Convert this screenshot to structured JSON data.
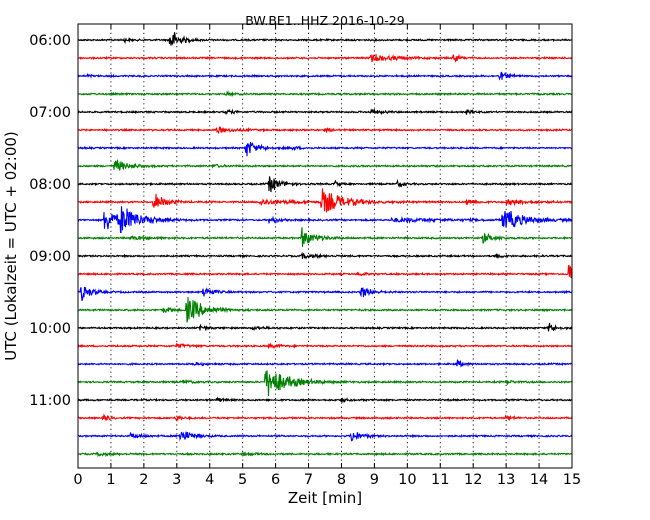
{
  "chart_data": {
    "type": "line",
    "title": "BW.BE1..HHZ 2016-10-29",
    "xlabel": "Zeit  [min]",
    "ylabel": "UTC (Lokalzeit = UTC + 02:00)",
    "xlim": [
      0,
      15
    ],
    "x_ticks": [
      "0",
      "1",
      "2",
      "3",
      "4",
      "5",
      "6",
      "7",
      "8",
      "9",
      "10",
      "11",
      "12",
      "13",
      "14",
      "15"
    ],
    "y_ticks": [
      "06:00",
      "07:00",
      "08:00",
      "09:00",
      "10:00",
      "11:00"
    ],
    "grid_vertical": true,
    "colors": [
      "#000000",
      "#ff0000",
      "#0000ff",
      "#008000"
    ],
    "traces": [
      {
        "start": "06:00",
        "events": [
          {
            "t": 2.8,
            "amp": 0.9,
            "dur": 0.25
          },
          {
            "t": 1.4,
            "amp": 0.15,
            "dur": 0.15
          }
        ]
      },
      {
        "start": "06:15",
        "events": [
          {
            "t": 8.9,
            "amp": 0.3,
            "dur": 0.6
          },
          {
            "t": 11.4,
            "amp": 0.35,
            "dur": 0.15
          }
        ]
      },
      {
        "start": "06:30",
        "events": [
          {
            "t": 12.8,
            "amp": 0.35,
            "dur": 0.2
          },
          {
            "t": 0.3,
            "amp": 0.12,
            "dur": 0.1
          }
        ]
      },
      {
        "start": "06:45",
        "events": [
          {
            "t": 4.5,
            "amp": 0.12,
            "dur": 0.2
          }
        ]
      },
      {
        "start": "07:00",
        "events": [
          {
            "t": 4.5,
            "amp": 0.18,
            "dur": 0.2
          },
          {
            "t": 8.9,
            "amp": 0.2,
            "dur": 0.25
          },
          {
            "t": 11.8,
            "amp": 0.15,
            "dur": 0.2
          }
        ]
      },
      {
        "start": "07:15",
        "events": [
          {
            "t": 4.2,
            "amp": 0.2,
            "dur": 0.5
          },
          {
            "t": 7.5,
            "amp": 0.12,
            "dur": 0.2
          }
        ]
      },
      {
        "start": "07:30",
        "events": [
          {
            "t": 5.1,
            "amp": 0.7,
            "dur": 0.3
          },
          {
            "t": 6.5,
            "amp": 0.12,
            "dur": 0.2
          }
        ]
      },
      {
        "start": "07:45",
        "events": [
          {
            "t": 1.1,
            "amp": 0.55,
            "dur": 0.35
          },
          {
            "t": 4.1,
            "amp": 0.18,
            "dur": 0.15
          }
        ]
      },
      {
        "start": "08:00",
        "events": [
          {
            "t": 5.8,
            "amp": 0.7,
            "dur": 0.3
          },
          {
            "t": 7.8,
            "amp": 0.25,
            "dur": 0.1
          },
          {
            "t": 9.7,
            "amp": 0.3,
            "dur": 0.15
          }
        ]
      },
      {
        "start": "08:15",
        "events": [
          {
            "t": 2.3,
            "amp": 0.7,
            "dur": 0.3
          },
          {
            "t": 7.4,
            "amp": 0.95,
            "dur": 0.6
          },
          {
            "t": 5.5,
            "amp": 0.2,
            "dur": 1.0
          },
          {
            "t": 11.8,
            "amp": 0.3,
            "dur": 0.2
          },
          {
            "t": 13.0,
            "amp": 0.2,
            "dur": 0.6
          }
        ]
      },
      {
        "start": "08:30",
        "events": [
          {
            "t": 0.8,
            "amp": 0.9,
            "dur": 0.5
          },
          {
            "t": 1.3,
            "amp": 1.0,
            "dur": 0.5
          },
          {
            "t": 5.8,
            "amp": 0.2,
            "dur": 0.3
          },
          {
            "t": 12.9,
            "amp": 0.95,
            "dur": 0.55
          },
          {
            "t": 9.5,
            "amp": 0.15,
            "dur": 1.5
          }
        ]
      },
      {
        "start": "08:45",
        "events": [
          {
            "t": 6.8,
            "amp": 0.75,
            "dur": 0.35
          },
          {
            "t": 12.3,
            "amp": 0.4,
            "dur": 0.3
          },
          {
            "t": 1.6,
            "amp": 0.12,
            "dur": 0.5
          }
        ]
      },
      {
        "start": "09:00",
        "events": [
          {
            "t": 6.8,
            "amp": 0.18,
            "dur": 0.4
          },
          {
            "t": 12.7,
            "amp": 0.15,
            "dur": 0.2
          }
        ]
      },
      {
        "start": "09:15",
        "events": [
          {
            "t": 14.9,
            "amp": 1.1,
            "dur": 0.25
          },
          {
            "t": 8.5,
            "amp": 0.15,
            "dur": 0.2
          }
        ]
      },
      {
        "start": "09:30",
        "events": [
          {
            "t": 0.1,
            "amp": 0.65,
            "dur": 0.25
          },
          {
            "t": 3.8,
            "amp": 0.4,
            "dur": 0.25
          },
          {
            "t": 8.6,
            "amp": 0.5,
            "dur": 0.25
          }
        ]
      },
      {
        "start": "09:45",
        "events": [
          {
            "t": 3.3,
            "amp": 1.1,
            "dur": 0.45
          },
          {
            "t": 2.6,
            "amp": 0.2,
            "dur": 0.3
          }
        ]
      },
      {
        "start": "10:00",
        "events": [
          {
            "t": 3.7,
            "amp": 0.3,
            "dur": 0.15
          },
          {
            "t": 14.3,
            "amp": 0.45,
            "dur": 0.15
          },
          {
            "t": 5.3,
            "amp": 0.12,
            "dur": 0.3
          }
        ]
      },
      {
        "start": "10:15",
        "events": [
          {
            "t": 3.0,
            "amp": 0.18,
            "dur": 0.3
          },
          {
            "t": 5.8,
            "amp": 0.15,
            "dur": 0.3
          }
        ]
      },
      {
        "start": "10:30",
        "events": [
          {
            "t": 11.5,
            "amp": 0.35,
            "dur": 0.15
          },
          {
            "t": 3.5,
            "amp": 0.12,
            "dur": 0.3
          }
        ]
      },
      {
        "start": "10:45",
        "events": [
          {
            "t": 5.7,
            "amp": 1.3,
            "dur": 0.6
          },
          {
            "t": 13.0,
            "amp": 0.15,
            "dur": 0.2
          },
          {
            "t": 3.2,
            "amp": 0.12,
            "dur": 0.3
          }
        ]
      },
      {
        "start": "11:00",
        "events": [
          {
            "t": 4.2,
            "amp": 0.15,
            "dur": 0.2
          },
          {
            "t": 8.0,
            "amp": 0.12,
            "dur": 0.2
          }
        ]
      },
      {
        "start": "11:15",
        "events": [
          {
            "t": 0.8,
            "amp": 0.35,
            "dur": 0.1
          },
          {
            "t": 3.0,
            "amp": 0.2,
            "dur": 0.15
          },
          {
            "t": 13.0,
            "amp": 0.15,
            "dur": 0.2
          }
        ]
      },
      {
        "start": "11:30",
        "events": [
          {
            "t": 3.1,
            "amp": 0.55,
            "dur": 0.3
          },
          {
            "t": 8.3,
            "amp": 0.5,
            "dur": 0.25
          },
          {
            "t": 1.6,
            "amp": 0.2,
            "dur": 0.3
          }
        ]
      },
      {
        "start": "11:45",
        "events": [
          {
            "t": 0.6,
            "amp": 0.15,
            "dur": 0.3
          },
          {
            "t": 5.0,
            "amp": 0.12,
            "dur": 0.3
          }
        ]
      }
    ]
  }
}
